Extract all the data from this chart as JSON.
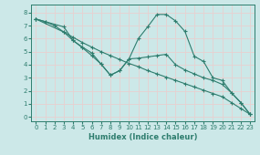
{
  "xlabel": "Humidex (Indice chaleur)",
  "bg_color": "#cce8e8",
  "grid_color": "#e8d0d0",
  "line_color": "#2e7d6e",
  "xlim": [
    -0.5,
    23.5
  ],
  "ylim": [
    -0.3,
    8.6
  ],
  "xticks": [
    0,
    1,
    2,
    3,
    4,
    5,
    6,
    7,
    8,
    9,
    10,
    11,
    12,
    13,
    14,
    15,
    16,
    17,
    18,
    19,
    20,
    21,
    22,
    23
  ],
  "yticks": [
    0,
    1,
    2,
    3,
    4,
    5,
    6,
    7,
    8
  ],
  "line1_x": [
    0,
    1,
    2,
    3,
    4,
    5,
    6,
    7,
    8,
    9,
    10,
    11,
    12,
    13,
    14,
    15,
    16,
    17,
    18,
    19,
    20,
    21,
    22,
    23
  ],
  "line1_y": [
    7.5,
    7.3,
    7.0,
    6.5,
    6.1,
    5.7,
    5.35,
    5.0,
    4.7,
    4.4,
    4.1,
    3.85,
    3.55,
    3.3,
    3.05,
    2.8,
    2.55,
    2.3,
    2.05,
    1.8,
    1.55,
    1.1,
    0.65,
    0.2
  ],
  "line2_x": [
    0,
    1,
    3,
    4,
    5,
    6,
    7,
    8,
    9,
    10,
    11,
    12,
    13,
    14,
    15,
    16,
    17,
    18,
    19,
    20,
    21,
    22,
    23
  ],
  "line2_y": [
    7.5,
    7.3,
    6.9,
    5.85,
    5.3,
    4.7,
    4.05,
    3.2,
    3.55,
    4.45,
    6.0,
    6.9,
    7.85,
    7.85,
    7.35,
    6.55,
    4.65,
    4.25,
    3.0,
    2.8,
    1.85,
    1.1,
    0.2
  ],
  "line3_x": [
    0,
    3,
    4,
    5,
    6,
    7,
    8,
    9,
    10,
    11,
    12,
    13,
    14,
    15,
    16,
    17,
    18,
    19,
    20,
    21,
    22,
    23
  ],
  "line3_y": [
    7.5,
    6.5,
    5.85,
    5.35,
    4.9,
    4.05,
    3.2,
    3.55,
    4.45,
    4.5,
    4.6,
    4.7,
    4.8,
    4.0,
    3.6,
    3.3,
    3.0,
    2.8,
    2.5,
    1.85,
    1.1,
    0.2
  ]
}
